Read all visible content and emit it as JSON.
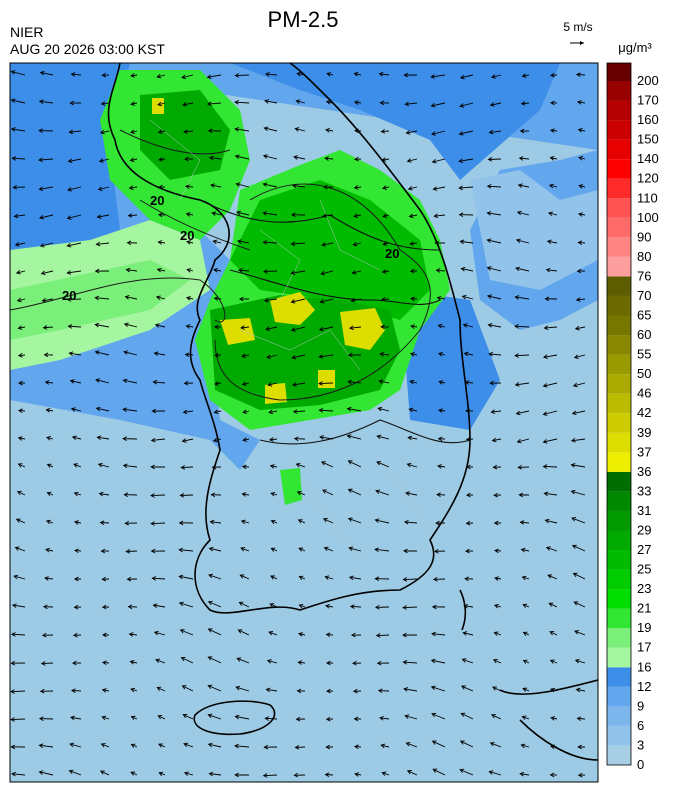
{
  "header": {
    "title": "PM-2.5",
    "agency": "NIER",
    "datetime": "AUG 20 2026 03:00 KST",
    "wind_scale": "5 m/s",
    "unit": "μg/m³",
    "contour_label": "20"
  },
  "legend": {
    "levels": [
      0,
      3,
      6,
      9,
      12,
      16,
      17,
      19,
      21,
      23,
      25,
      27,
      29,
      31,
      33,
      36,
      37,
      39,
      42,
      46,
      50,
      55,
      60,
      65,
      70,
      76,
      80,
      90,
      100,
      110,
      120,
      140,
      150,
      160,
      170,
      200
    ],
    "colors": [
      "#a6cfe6",
      "#92c3ea",
      "#7db6ec",
      "#62a6ee",
      "#3d8ee8",
      "#a6f5a0",
      "#7af07a",
      "#33e633",
      "#00dd00",
      "#00cc00",
      "#00bb00",
      "#00aa00",
      "#009900",
      "#008800",
      "#006e00",
      "#eeee00",
      "#dddd00",
      "#cccc00",
      "#bbbb00",
      "#aaaa00",
      "#999900",
      "#888800",
      "#777700",
      "#6b6b00",
      "#5e5e00",
      "#ff9e9e",
      "#ff8585",
      "#ff6b6b",
      "#ff5252",
      "#ff2a2a",
      "#ff0000",
      "#e60000",
      "#cc0000",
      "#b30000",
      "#990000",
      "#660000"
    ]
  }
}
